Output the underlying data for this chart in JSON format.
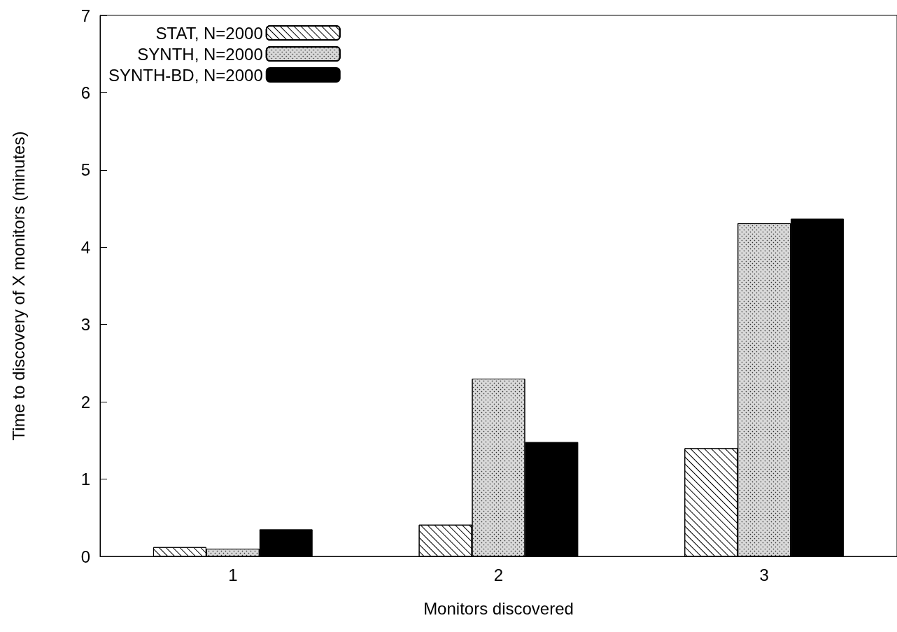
{
  "chart_data": {
    "type": "bar",
    "xlabel": "Monitors discovered",
    "ylabel": "Time to discovery of X monitors (minutes)",
    "categories": [
      "1",
      "2",
      "3"
    ],
    "series": [
      {
        "name": "STAT, N=2000",
        "color": "#ffffff",
        "values": [
          0.12,
          0.41,
          1.4
        ]
      },
      {
        "name": "SYNTH, N=2000",
        "color": "#d9d9d9",
        "values": [
          0.1,
          2.3,
          4.31
        ]
      },
      {
        "name": "SYNTH-BD, N=2000",
        "color": "#000000",
        "values": [
          0.35,
          1.48,
          4.37
        ]
      }
    ],
    "ylim": [
      0,
      7
    ],
    "yticks": [
      0,
      1,
      2,
      3,
      4,
      5,
      6,
      7
    ],
    "grid": false,
    "legend": "top left"
  }
}
